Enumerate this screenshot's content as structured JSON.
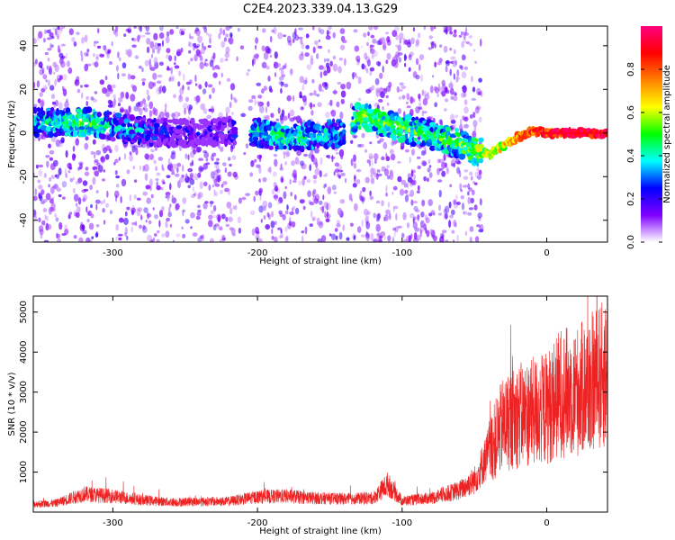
{
  "figure": {
    "title": "C2E4.2023.339.04.13.G29"
  },
  "chart_data": [
    {
      "type": "heatmap",
      "title": "C2E4.2023.339.04.13.G29",
      "xlabel": "Height of straight line (km)",
      "ylabel": "Frequency (Hz)",
      "xlim": [
        -355,
        42
      ],
      "ylim": [
        -50,
        49
      ],
      "xticks": [
        -300,
        -200,
        -100,
        0
      ],
      "yticks": [
        -40,
        -20,
        0,
        20,
        40
      ],
      "colorbar": {
        "label": "Normalized spectral amplitude",
        "range": [
          0,
          1
        ],
        "ticks": [
          "0.0",
          "0.2",
          "0.4",
          "0.6",
          "0.8"
        ],
        "colormap": [
          "#ffffff",
          "#8000ff",
          "#0000ff",
          "#00ffff",
          "#00ff00",
          "#ffff00",
          "#ff8000",
          "#ff0000",
          "#ff0080"
        ]
      },
      "dominant_frequency_trace": {
        "x": [
          -340,
          -320,
          -300,
          -280,
          -260,
          -240,
          -220,
          -210,
          -200,
          -180,
          -160,
          -140,
          -130,
          -120,
          -100,
          -80,
          -60,
          -50,
          -40,
          -30,
          -20,
          -10,
          0,
          20,
          42
        ],
        "y": [
          5,
          5,
          3,
          1,
          0,
          0,
          1,
          2,
          0,
          -2,
          -1,
          0,
          8,
          6,
          2,
          -1,
          -5,
          -8,
          -10,
          -6,
          -2,
          1,
          0,
          0,
          0
        ],
        "amplitude": [
          0.4,
          0.5,
          0.35,
          0.3,
          0.2,
          0.15,
          0.2,
          0.35,
          0.4,
          0.45,
          0.4,
          0.35,
          0.55,
          0.5,
          0.5,
          0.45,
          0.5,
          0.55,
          0.6,
          0.65,
          0.75,
          0.85,
          0.9,
          0.95,
          0.95
        ]
      },
      "gap_regions_km": [
        [
          -215,
          -205
        ],
        [
          -140,
          -135
        ],
        [
          -45,
          42
        ]
      ]
    },
    {
      "type": "line",
      "xlabel": "Height of straight line (km)",
      "ylabel": "SNR (10 * v/v)",
      "xlim": [
        -355,
        42
      ],
      "ylim": [
        0,
        5400
      ],
      "xticks": [
        -300,
        -200,
        -100,
        0
      ],
      "yticks": [
        1000,
        2000,
        3000,
        4000,
        5000
      ],
      "color": "#ee2222",
      "series": [
        {
          "x": [
            -355,
            -340,
            -320,
            -300,
            -280,
            -260,
            -240,
            -220,
            -200,
            -180,
            -160,
            -140,
            -120,
            -110,
            -100,
            -80,
            -60,
            -50,
            -40,
            -30,
            -20,
            -10,
            0,
            10,
            20,
            30,
            42
          ],
          "y": [
            200,
            220,
            450,
            400,
            300,
            250,
            260,
            270,
            380,
            400,
            350,
            330,
            350,
            700,
            280,
            350,
            550,
            800,
            1500,
            2200,
            2400,
            2500,
            2600,
            3000,
            3000,
            3200,
            3500
          ]
        }
      ]
    }
  ]
}
